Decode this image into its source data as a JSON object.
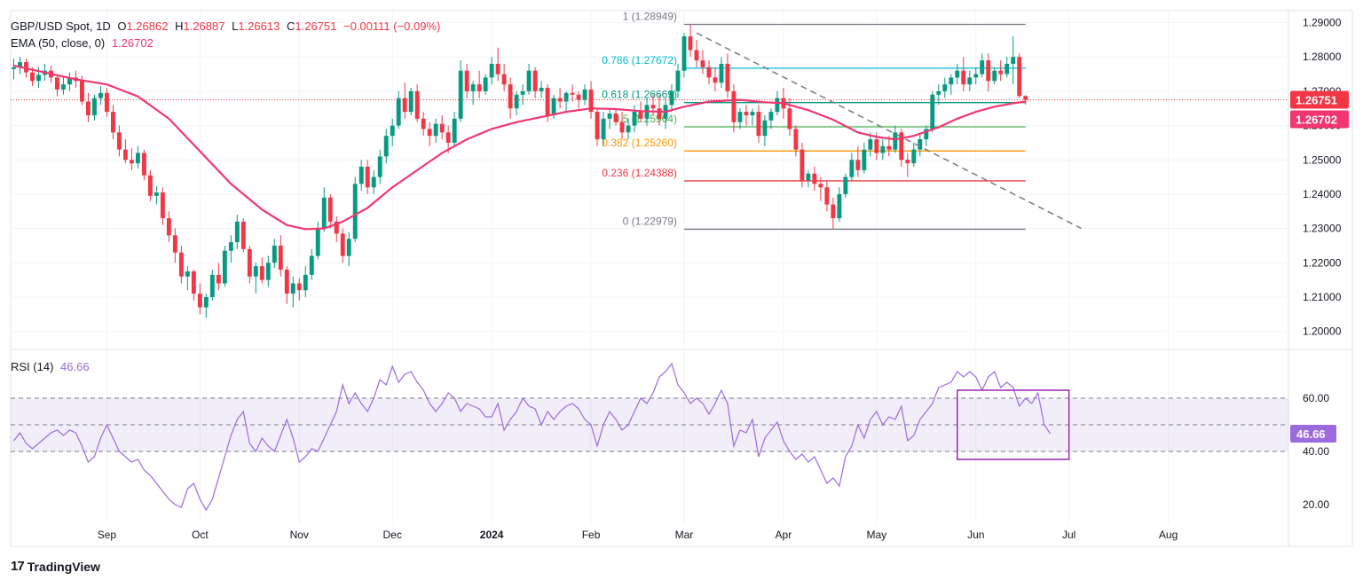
{
  "header": {
    "symbol": "GBP/USD Spot, 1D",
    "open_label": "O",
    "open": "1.26862",
    "high_label": "H",
    "high": "1.26887",
    "low_label": "L",
    "low": "1.26613",
    "close_label": "C",
    "close": "1.26751",
    "change": "−0.00111 (−0.09%)"
  },
  "ema_legend": {
    "label": "EMA (50, close, 0)",
    "value": "1.26702"
  },
  "rsi_legend": {
    "label": "RSI (14)",
    "value": "46.66"
  },
  "brand": {
    "name": "TradingView",
    "logo_glyph": "17"
  },
  "colors": {
    "up": "#089981",
    "down": "#f23645",
    "ema": "#f23670",
    "rsi": "#9c6ade",
    "rsi_band": "#7e57c2",
    "grid": "#f0f3fa",
    "axis_text": "#131722",
    "fib_0": "#787b86",
    "fib_0236": "#f23645",
    "fib_0382": "#ff9800",
    "fib_05": "#4caf50",
    "fib_0618": "#089981",
    "fib_0786": "#00bcd4",
    "fib_1": "#787b86"
  },
  "chart_data": {
    "type": "candlestick",
    "title": "GBP/USD Spot, 1D",
    "price_axis": {
      "ylim": [
        1.195,
        1.2935
      ],
      "ticks": [
        "1.29000",
        "1.28000",
        "1.27000",
        "1.26000",
        "1.25000",
        "1.24000",
        "1.23000",
        "1.22000",
        "1.21000",
        "1.20000"
      ],
      "tick_values": [
        1.29,
        1.28,
        1.27,
        1.26,
        1.25,
        1.24,
        1.23,
        1.22,
        1.21,
        1.2
      ]
    },
    "time_axis": {
      "labels": [
        "Sep",
        "Oct",
        "Nov",
        "Dec",
        "2024",
        "Feb",
        "Mar",
        "Apr",
        "May",
        "Jun",
        "Jul",
        "Aug"
      ],
      "bold_label": "2024",
      "bar_index": [
        15,
        30,
        46,
        61,
        77,
        93,
        108,
        124,
        139,
        155,
        170,
        186
      ],
      "total_bars": 206
    },
    "current_price": {
      "value": 1.26751,
      "label": "1.26751"
    },
    "ema_current": {
      "value": 1.26702,
      "label": "1.26702"
    },
    "ema_path": [
      [
        0,
        1.2775
      ],
      [
        10,
        1.2735
      ],
      [
        15,
        1.272
      ],
      [
        20,
        1.2685
      ],
      [
        25,
        1.262
      ],
      [
        30,
        1.2525
      ],
      [
        35,
        1.243
      ],
      [
        40,
        1.2355
      ],
      [
        44,
        1.231
      ],
      [
        47,
        1.2298
      ],
      [
        50,
        1.23
      ],
      [
        53,
        1.232
      ],
      [
        57,
        1.236
      ],
      [
        61,
        1.242
      ],
      [
        65,
        1.247
      ],
      [
        69,
        1.252
      ],
      [
        73,
        1.256
      ],
      [
        77,
        1.259
      ],
      [
        81,
        1.261
      ],
      [
        85,
        1.2625
      ],
      [
        89,
        1.264
      ],
      [
        93,
        1.265
      ],
      [
        97,
        1.2648
      ],
      [
        101,
        1.2642
      ],
      [
        105,
        1.264
      ],
      [
        108,
        1.2655
      ],
      [
        112,
        1.267
      ],
      [
        117,
        1.2675
      ],
      [
        121,
        1.2668
      ],
      [
        124,
        1.2665
      ],
      [
        128,
        1.2645
      ],
      [
        132,
        1.2617
      ],
      [
        136,
        1.258
      ],
      [
        139,
        1.2567
      ],
      [
        142,
        1.256
      ],
      [
        145,
        1.257
      ],
      [
        149,
        1.2595
      ],
      [
        152,
        1.262
      ],
      [
        155,
        1.264
      ],
      [
        158,
        1.2655
      ],
      [
        161,
        1.2665
      ],
      [
        163,
        1.267
      ]
    ],
    "candles": [
      [
        1.2765,
        1.2795,
        1.2735,
        1.277
      ],
      [
        1.277,
        1.28,
        1.275,
        1.2785
      ],
      [
        1.2785,
        1.2795,
        1.274,
        1.2755
      ],
      [
        1.2755,
        1.277,
        1.2715,
        1.273
      ],
      [
        1.273,
        1.277,
        1.271,
        1.2748
      ],
      [
        1.2748,
        1.278,
        1.273,
        1.276
      ],
      [
        1.276,
        1.2775,
        1.2725,
        1.274
      ],
      [
        1.274,
        1.2745,
        1.2685,
        1.2705
      ],
      [
        1.2705,
        1.274,
        1.269,
        1.272
      ],
      [
        1.272,
        1.2755,
        1.27,
        1.274
      ],
      [
        1.274,
        1.276,
        1.271,
        1.273
      ],
      [
        1.273,
        1.2745,
        1.266,
        1.267
      ],
      [
        1.267,
        1.2695,
        1.261,
        1.263
      ],
      [
        1.263,
        1.269,
        1.2615,
        1.268
      ],
      [
        1.268,
        1.2715,
        1.266,
        1.2695
      ],
      [
        1.2695,
        1.271,
        1.2625,
        1.264
      ],
      [
        1.264,
        1.266,
        1.256,
        1.258
      ],
      [
        1.258,
        1.26,
        1.251,
        1.253
      ],
      [
        1.253,
        1.256,
        1.249,
        1.25
      ],
      [
        1.25,
        1.2535,
        1.247,
        1.249
      ],
      [
        1.249,
        1.254,
        1.2475,
        1.252
      ],
      [
        1.252,
        1.253,
        1.244,
        1.2455
      ],
      [
        1.2455,
        1.247,
        1.238,
        1.2395
      ],
      [
        1.2395,
        1.2425,
        1.237,
        1.2405
      ],
      [
        1.2405,
        1.242,
        1.231,
        1.233
      ],
      [
        1.233,
        1.235,
        1.226,
        1.228
      ],
      [
        1.228,
        1.23,
        1.22,
        1.223
      ],
      [
        1.223,
        1.225,
        1.214,
        1.216
      ],
      [
        1.216,
        1.219,
        1.212,
        1.2175
      ],
      [
        1.2175,
        1.218,
        1.209,
        1.211
      ],
      [
        1.211,
        1.214,
        1.205,
        1.207
      ],
      [
        1.207,
        1.211,
        1.204,
        1.21
      ],
      [
        1.21,
        1.218,
        1.209,
        1.2165
      ],
      [
        1.2165,
        1.22,
        1.212,
        1.214
      ],
      [
        1.214,
        1.225,
        1.213,
        1.2235
      ],
      [
        1.2235,
        1.228,
        1.22,
        1.226
      ],
      [
        1.226,
        1.234,
        1.224,
        1.232
      ],
      [
        1.232,
        1.233,
        1.223,
        1.224
      ],
      [
        1.224,
        1.225,
        1.214,
        1.216
      ],
      [
        1.216,
        1.22,
        1.211,
        1.219
      ],
      [
        1.219,
        1.2215,
        1.214,
        1.215
      ],
      [
        1.215,
        1.222,
        1.213,
        1.22
      ],
      [
        1.22,
        1.227,
        1.2185,
        1.225
      ],
      [
        1.225,
        1.228,
        1.216,
        1.218
      ],
      [
        1.218,
        1.219,
        1.208,
        1.211
      ],
      [
        1.211,
        1.216,
        1.207,
        1.214
      ],
      [
        1.214,
        1.2155,
        1.209,
        1.212
      ],
      [
        1.212,
        1.219,
        1.21,
        1.2165
      ],
      [
        1.2165,
        1.224,
        1.215,
        1.222
      ],
      [
        1.222,
        1.232,
        1.221,
        1.23
      ],
      [
        1.23,
        1.242,
        1.229,
        1.239
      ],
      [
        1.239,
        1.24,
        1.23,
        1.232
      ],
      [
        1.232,
        1.2335,
        1.226,
        1.2285
      ],
      [
        1.2285,
        1.23,
        1.22,
        1.222
      ],
      [
        1.222,
        1.229,
        1.219,
        1.227
      ],
      [
        1.227,
        1.245,
        1.226,
        1.243
      ],
      [
        1.243,
        1.25,
        1.241,
        1.248
      ],
      [
        1.248,
        1.25,
        1.24,
        1.242
      ],
      [
        1.242,
        1.247,
        1.24,
        1.245
      ],
      [
        1.245,
        1.253,
        1.243,
        1.251
      ],
      [
        1.251,
        1.259,
        1.249,
        1.257
      ],
      [
        1.257,
        1.262,
        1.254,
        1.26
      ],
      [
        1.26,
        1.27,
        1.259,
        1.268
      ],
      [
        1.268,
        1.2725,
        1.262,
        1.264
      ],
      [
        1.264,
        1.271,
        1.263,
        1.27
      ],
      [
        1.27,
        1.272,
        1.261,
        1.262
      ],
      [
        1.262,
        1.264,
        1.257,
        1.259
      ],
      [
        1.259,
        1.261,
        1.254,
        1.257
      ],
      [
        1.257,
        1.262,
        1.255,
        1.2605
      ],
      [
        1.2605,
        1.263,
        1.256,
        1.258
      ],
      [
        1.258,
        1.26,
        1.252,
        1.255
      ],
      [
        1.255,
        1.264,
        1.254,
        1.262
      ],
      [
        1.262,
        1.279,
        1.261,
        1.276
      ],
      [
        1.276,
        1.278,
        1.268,
        1.27
      ],
      [
        1.27,
        1.273,
        1.266,
        1.272
      ],
      [
        1.272,
        1.276,
        1.268,
        1.27
      ],
      [
        1.27,
        1.275,
        1.269,
        1.274
      ],
      [
        1.274,
        1.28,
        1.272,
        1.278
      ],
      [
        1.278,
        1.2827,
        1.273,
        1.275
      ],
      [
        1.275,
        1.278,
        1.27,
        1.272
      ],
      [
        1.272,
        1.274,
        1.262,
        1.265
      ],
      [
        1.265,
        1.27,
        1.263,
        1.269
      ],
      [
        1.269,
        1.272,
        1.266,
        1.27
      ],
      [
        1.27,
        1.278,
        1.269,
        1.276
      ],
      [
        1.276,
        1.277,
        1.268,
        1.27
      ],
      [
        1.27,
        1.273,
        1.268,
        1.271
      ],
      [
        1.271,
        1.272,
        1.261,
        1.263
      ],
      [
        1.263,
        1.269,
        1.262,
        1.268
      ],
      [
        1.268,
        1.271,
        1.265,
        1.267
      ],
      [
        1.267,
        1.27,
        1.264,
        1.2695
      ],
      [
        1.2695,
        1.272,
        1.267,
        1.269
      ],
      [
        1.269,
        1.27,
        1.265,
        1.2675
      ],
      [
        1.2675,
        1.272,
        1.266,
        1.2705
      ],
      [
        1.2705,
        1.273,
        1.262,
        1.264
      ],
      [
        1.264,
        1.265,
        1.254,
        1.256
      ],
      [
        1.256,
        1.264,
        1.254,
        1.262
      ],
      [
        1.262,
        1.265,
        1.259,
        1.2635
      ],
      [
        1.2635,
        1.265,
        1.26,
        1.261
      ],
      [
        1.261,
        1.264,
        1.256,
        1.258
      ],
      [
        1.258,
        1.262,
        1.256,
        1.26
      ],
      [
        1.26,
        1.266,
        1.258,
        1.264
      ],
      [
        1.264,
        1.267,
        1.261,
        1.262
      ],
      [
        1.262,
        1.268,
        1.26,
        1.266
      ],
      [
        1.266,
        1.269,
        1.263,
        1.265
      ],
      [
        1.265,
        1.269,
        1.26,
        1.262
      ],
      [
        1.262,
        1.268,
        1.259,
        1.266
      ],
      [
        1.266,
        1.272,
        1.264,
        1.27
      ],
      [
        1.27,
        1.278,
        1.268,
        1.276
      ],
      [
        1.276,
        1.287,
        1.274,
        1.286
      ],
      [
        1.286,
        1.2895,
        1.28,
        1.282
      ],
      [
        1.282,
        1.285,
        1.277,
        1.279
      ],
      [
        1.279,
        1.282,
        1.275,
        1.277
      ],
      [
        1.277,
        1.279,
        1.272,
        1.274
      ],
      [
        1.274,
        1.277,
        1.27,
        1.2725
      ],
      [
        1.2725,
        1.28,
        1.271,
        1.278
      ],
      [
        1.278,
        1.281,
        1.268,
        1.27
      ],
      [
        1.27,
        1.272,
        1.258,
        1.261
      ],
      [
        1.261,
        1.265,
        1.259,
        1.264
      ],
      [
        1.264,
        1.266,
        1.26,
        1.263
      ],
      [
        1.263,
        1.265,
        1.26,
        1.264
      ],
      [
        1.264,
        1.266,
        1.255,
        1.257
      ],
      [
        1.257,
        1.263,
        1.254,
        1.2615
      ],
      [
        1.2615,
        1.265,
        1.259,
        1.264
      ],
      [
        1.264,
        1.27,
        1.263,
        1.268
      ],
      [
        1.268,
        1.271,
        1.262,
        1.265
      ],
      [
        1.265,
        1.268,
        1.257,
        1.259
      ],
      [
        1.259,
        1.26,
        1.251,
        1.253
      ],
      [
        1.253,
        1.255,
        1.242,
        1.244
      ],
      [
        1.244,
        1.247,
        1.242,
        1.246
      ],
      [
        1.246,
        1.248,
        1.241,
        1.243
      ],
      [
        1.243,
        1.245,
        1.238,
        1.242
      ],
      [
        1.242,
        1.244,
        1.235,
        1.237
      ],
      [
        1.237,
        1.239,
        1.23,
        1.233
      ],
      [
        1.233,
        1.242,
        1.232,
        1.24
      ],
      [
        1.24,
        1.246,
        1.239,
        1.245
      ],
      [
        1.245,
        1.252,
        1.244,
        1.25
      ],
      [
        1.25,
        1.254,
        1.245,
        1.247
      ],
      [
        1.247,
        1.255,
        1.246,
        1.253
      ],
      [
        1.253,
        1.258,
        1.251,
        1.256
      ],
      [
        1.256,
        1.258,
        1.25,
        1.252
      ],
      [
        1.252,
        1.256,
        1.25,
        1.254
      ],
      [
        1.254,
        1.257,
        1.251,
        1.253
      ],
      [
        1.253,
        1.26,
        1.252,
        1.258
      ],
      [
        1.258,
        1.259,
        1.248,
        1.25
      ],
      [
        1.25,
        1.252,
        1.245,
        1.249
      ],
      [
        1.249,
        1.255,
        1.248,
        1.253
      ],
      [
        1.253,
        1.258,
        1.251,
        1.256
      ],
      [
        1.256,
        1.26,
        1.254,
        1.259
      ],
      [
        1.259,
        1.27,
        1.258,
        1.269
      ],
      [
        1.269,
        1.272,
        1.266,
        1.27
      ],
      [
        1.27,
        1.274,
        1.268,
        1.272
      ],
      [
        1.272,
        1.275,
        1.269,
        1.274
      ],
      [
        1.274,
        1.278,
        1.272,
        1.276
      ],
      [
        1.276,
        1.28,
        1.27,
        1.272
      ],
      [
        1.272,
        1.276,
        1.27,
        1.274
      ],
      [
        1.274,
        1.277,
        1.272,
        1.275
      ],
      [
        1.275,
        1.281,
        1.274,
        1.279
      ],
      [
        1.279,
        1.281,
        1.27,
        1.273
      ],
      [
        1.273,
        1.277,
        1.272,
        1.276
      ],
      [
        1.276,
        1.279,
        1.273,
        1.275
      ],
      [
        1.275,
        1.28,
        1.274,
        1.278
      ],
      [
        1.278,
        1.286,
        1.272,
        1.28
      ],
      [
        1.28,
        1.281,
        1.268,
        1.2686
      ],
      [
        1.2686,
        1.2689,
        1.2661,
        1.2675
      ]
    ]
  },
  "fib_levels": [
    {
      "ratio": "0",
      "price": 1.22979,
      "label": "0 (1.22979)",
      "color": "#787b86"
    },
    {
      "ratio": "0.236",
      "price": 1.24388,
      "label": "0.236 (1.24388)",
      "color": "#f23645"
    },
    {
      "ratio": "0.382",
      "price": 1.2526,
      "label": "0.382 (1.25260)",
      "color": "#ff9800"
    },
    {
      "ratio": "0.5",
      "price": 1.25964,
      "label": "0.5 (1.25964)",
      "color": "#4caf50"
    },
    {
      "ratio": "0.618",
      "price": 1.26669,
      "label": "0.618 (1.26669)",
      "color": "#089981"
    },
    {
      "ratio": "0.786",
      "price": 1.27672,
      "label": "0.786 (1.27672)",
      "color": "#00bcd4"
    },
    {
      "ratio": "1",
      "price": 1.28949,
      "label": "1 (1.28949)",
      "color": "#787b86"
    }
  ],
  "fib_range": {
    "from_bar": 108,
    "to_bar": 163
  },
  "trendline": {
    "from": [
      110,
      1.287
    ],
    "to": [
      172,
      1.23
    ]
  },
  "rsi": {
    "current": 46.66,
    "current_label": "46.66",
    "upper": 60,
    "mid": 50,
    "lower": 40,
    "ylim": [
      13,
      78
    ],
    "ticks": [
      "60.00",
      "40.00",
      "20.00"
    ],
    "tick_values": [
      60,
      40,
      20
    ],
    "values": [
      44,
      47,
      43,
      41,
      43,
      45,
      47,
      48,
      46,
      48,
      47,
      42,
      36,
      38,
      45,
      50,
      45,
      40,
      38,
      36,
      37,
      33,
      31,
      28,
      25,
      22,
      20,
      19,
      26,
      28,
      22,
      18,
      22,
      30,
      38,
      46,
      52,
      55,
      43,
      40,
      45,
      42,
      40,
      46,
      52,
      45,
      36,
      38,
      41,
      40,
      45,
      50,
      55,
      65,
      58,
      62,
      58,
      55,
      60,
      67,
      65,
      72,
      66,
      69,
      70,
      66,
      63,
      58,
      55,
      58,
      62,
      60,
      55,
      58,
      57,
      56,
      53,
      53,
      58,
      48,
      52,
      55,
      60,
      57,
      56,
      50,
      55,
      52,
      55,
      57,
      58,
      56,
      52,
      50,
      42,
      50,
      55,
      52,
      48,
      50,
      55,
      60,
      58,
      62,
      68,
      70,
      73,
      65,
      62,
      58,
      60,
      58,
      54,
      58,
      63,
      58,
      42,
      48,
      47,
      52,
      38,
      45,
      48,
      51,
      44,
      40,
      37,
      39,
      36,
      38,
      33,
      28,
      30,
      27,
      38,
      42,
      50,
      45,
      52,
      55,
      50,
      53,
      52,
      57,
      44,
      46,
      52,
      55,
      58,
      64,
      65,
      66,
      70,
      68,
      70,
      68,
      63,
      68,
      70,
      64,
      66,
      64,
      57,
      60,
      58,
      62,
      50,
      46.66
    ],
    "box": {
      "from_bar": 152,
      "to_bar": 170,
      "top": 63,
      "bottom": 37
    }
  }
}
